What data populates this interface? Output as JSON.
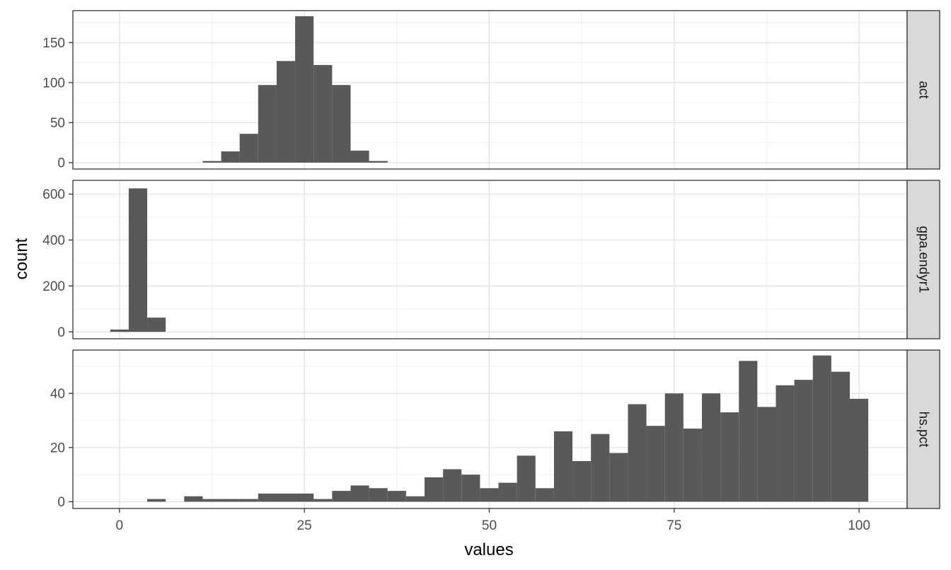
{
  "chart_data": {
    "type": "bar",
    "title": "",
    "xlabel": "values",
    "ylabel": "count",
    "xlim": [
      -6.3,
      106.5
    ],
    "x_ticks": [
      0,
      25,
      50,
      75,
      100
    ],
    "bin_width": 2.5,
    "grid": true,
    "theme": "bw",
    "bar_color": "#595959",
    "strip_color": "#d9d9d9",
    "panels": [
      {
        "label": "act",
        "ylim": [
          -8,
          190
        ],
        "y_ticks": [
          0,
          50,
          100,
          150
        ],
        "bins": [
          {
            "x": 12.5,
            "count": 2
          },
          {
            "x": 15,
            "count": 14
          },
          {
            "x": 17.5,
            "count": 36
          },
          {
            "x": 20,
            "count": 97
          },
          {
            "x": 22.5,
            "count": 127
          },
          {
            "x": 25,
            "count": 183
          },
          {
            "x": 27.5,
            "count": 122
          },
          {
            "x": 30,
            "count": 97
          },
          {
            "x": 32.5,
            "count": 15
          },
          {
            "x": 35,
            "count": 2
          }
        ]
      },
      {
        "label": "gpa.endyr1",
        "ylim": [
          -30,
          660
        ],
        "y_ticks": [
          0,
          200,
          400,
          600
        ],
        "bins": [
          {
            "x": 0,
            "count": 10
          },
          {
            "x": 2.5,
            "count": 625
          },
          {
            "x": 5,
            "count": 62
          }
        ]
      },
      {
        "label": "hs.pct",
        "ylim": [
          -2.5,
          56
        ],
        "y_ticks": [
          0,
          20,
          40
        ],
        "bins": [
          {
            "x": 5,
            "count": 1
          },
          {
            "x": 10,
            "count": 2
          },
          {
            "x": 12.5,
            "count": 1
          },
          {
            "x": 15,
            "count": 1
          },
          {
            "x": 17.5,
            "count": 1
          },
          {
            "x": 20,
            "count": 3
          },
          {
            "x": 22.5,
            "count": 3
          },
          {
            "x": 25,
            "count": 3
          },
          {
            "x": 27.5,
            "count": 1
          },
          {
            "x": 30,
            "count": 4
          },
          {
            "x": 32.5,
            "count": 6
          },
          {
            "x": 35,
            "count": 5
          },
          {
            "x": 37.5,
            "count": 4
          },
          {
            "x": 40,
            "count": 2
          },
          {
            "x": 42.5,
            "count": 9
          },
          {
            "x": 45,
            "count": 12
          },
          {
            "x": 47.5,
            "count": 10
          },
          {
            "x": 50,
            "count": 5
          },
          {
            "x": 52.5,
            "count": 7
          },
          {
            "x": 55,
            "count": 17
          },
          {
            "x": 57.5,
            "count": 5
          },
          {
            "x": 60,
            "count": 26
          },
          {
            "x": 62.5,
            "count": 15
          },
          {
            "x": 65,
            "count": 25
          },
          {
            "x": 67.5,
            "count": 18
          },
          {
            "x": 70,
            "count": 36
          },
          {
            "x": 72.5,
            "count": 28
          },
          {
            "x": 75,
            "count": 40
          },
          {
            "x": 77.5,
            "count": 27
          },
          {
            "x": 80,
            "count": 40
          },
          {
            "x": 82.5,
            "count": 33
          },
          {
            "x": 85,
            "count": 52
          },
          {
            "x": 87.5,
            "count": 35
          },
          {
            "x": 90,
            "count": 43
          },
          {
            "x": 92.5,
            "count": 45
          },
          {
            "x": 95,
            "count": 54
          },
          {
            "x": 97.5,
            "count": 48
          },
          {
            "x": 100,
            "count": 38
          }
        ]
      }
    ]
  }
}
